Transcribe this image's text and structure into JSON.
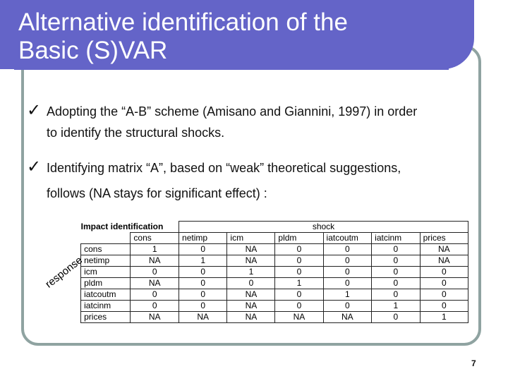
{
  "title": {
    "line1": "Alternative identification of the",
    "line2": "Basic (S)VAR"
  },
  "bullets": [
    {
      "line1": "Adopting the “A-B” scheme (Amisano and Giannini, 1997) in order",
      "line2": "to identify the structural shocks."
    },
    {
      "line1": "Identifying matrix “A”, based on “weak” theoretical  suggestions,",
      "line2": "follows (NA stays for significant effect) :"
    }
  ],
  "table": {
    "corner": "Impact identification",
    "group_label": "shock",
    "side_label": "response",
    "columns": [
      "cons",
      "netimp",
      "icm",
      "pldm",
      "iatcoutm",
      "iatcinm",
      "prices"
    ],
    "rows": [
      {
        "label": "cons",
        "cells": [
          "1",
          "0",
          "NA",
          "0",
          "0",
          "0",
          "NA"
        ]
      },
      {
        "label": "netimp",
        "cells": [
          "NA",
          "1",
          "NA",
          "0",
          "0",
          "0",
          "NA"
        ]
      },
      {
        "label": "icm",
        "cells": [
          "0",
          "0",
          "1",
          "0",
          "0",
          "0",
          "0"
        ]
      },
      {
        "label": "pldm",
        "cells": [
          "NA",
          "0",
          "0",
          "1",
          "0",
          "0",
          "0"
        ]
      },
      {
        "label": "iatcoutm",
        "cells": [
          "0",
          "0",
          "NA",
          "0",
          "1",
          "0",
          "0"
        ]
      },
      {
        "label": "iatcinm",
        "cells": [
          "0",
          "0",
          "NA",
          "0",
          "0",
          "1",
          "0"
        ]
      },
      {
        "label": "prices",
        "cells": [
          "NA",
          "NA",
          "NA",
          "NA",
          "NA",
          "0",
          "1"
        ]
      }
    ]
  },
  "page_number": "7",
  "colors": {
    "title_bg": "#6464c8",
    "frame": "#8fa3a1"
  }
}
